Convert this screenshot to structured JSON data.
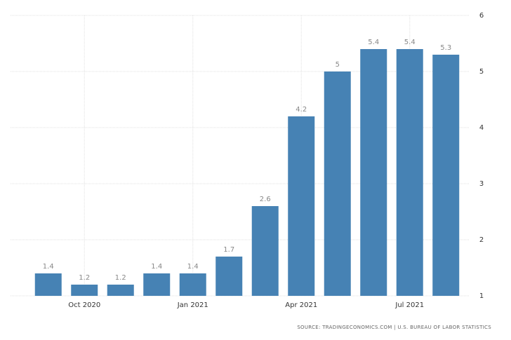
{
  "chart_data": {
    "type": "bar",
    "categories": [
      null,
      "Oct 2020",
      null,
      null,
      "Jan 2021",
      null,
      null,
      "Apr 2021",
      null,
      null,
      "Jul 2021",
      null
    ],
    "values": [
      1.4,
      1.2,
      1.2,
      1.4,
      1.4,
      1.7,
      2.6,
      4.2,
      5,
      5.4,
      5.4,
      5.3
    ],
    "color": "#4682b4",
    "ylim": [
      1,
      6
    ],
    "yticks": [
      1,
      2,
      3,
      4,
      5,
      6
    ],
    "grid": true,
    "source": "SOURCE: TRADINGECONOMICS.COM | U.S. BUREAU OF LABOR STATISTICS"
  }
}
